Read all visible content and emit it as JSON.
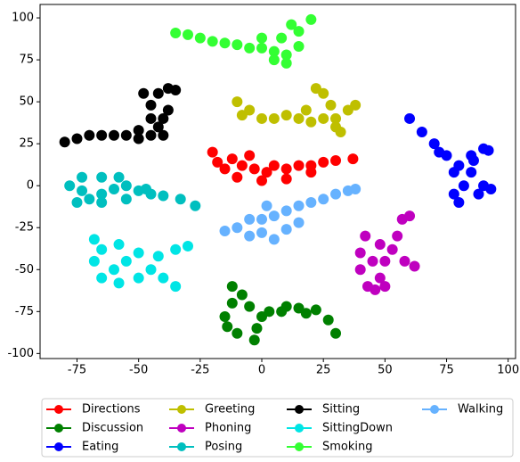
{
  "chart_data": {
    "type": "scatter",
    "xlim": [
      -90,
      103
    ],
    "ylim": [
      -103,
      108
    ],
    "xticks": [
      -75,
      -50,
      -25,
      0,
      25,
      50,
      75,
      100
    ],
    "yticks": [
      -100,
      -75,
      -50,
      -25,
      0,
      25,
      50,
      75,
      100
    ],
    "grid": false,
    "legend": "below",
    "series": [
      {
        "name": "Directions",
        "color": "#ff0000",
        "x": [
          -20,
          -18,
          -12,
          -8,
          -3,
          2,
          5,
          10,
          15,
          20,
          25,
          30,
          37,
          -10,
          0,
          10,
          -15,
          -5,
          20
        ],
        "y": [
          20,
          14,
          16,
          12,
          10,
          8,
          12,
          10,
          12,
          12,
          14,
          15,
          16,
          5,
          3,
          4,
          10,
          18,
          8
        ]
      },
      {
        "name": "Discussion",
        "color": "#008000",
        "x": [
          -12,
          -8,
          -15,
          -5,
          -2,
          3,
          8,
          15,
          22,
          27,
          30,
          -10,
          -3,
          -12,
          0,
          10,
          18,
          -14
        ],
        "y": [
          -60,
          -65,
          -78,
          -72,
          -85,
          -75,
          -75,
          -73,
          -74,
          -80,
          -88,
          -88,
          -92,
          -70,
          -78,
          -72,
          -76,
          -84
        ]
      },
      {
        "name": "Eating",
        "color": "#0000ff",
        "x": [
          60,
          65,
          70,
          75,
          80,
          85,
          90,
          92,
          85,
          90,
          93,
          82,
          78,
          80,
          88,
          78,
          72,
          86
        ],
        "y": [
          40,
          32,
          25,
          18,
          12,
          18,
          22,
          21,
          8,
          0,
          -2,
          0,
          -5,
          -10,
          -5,
          8,
          20,
          15
        ]
      },
      {
        "name": "Greeting",
        "color": "#bfbf00",
        "x": [
          -10,
          -5,
          -8,
          0,
          5,
          10,
          15,
          20,
          25,
          30,
          35,
          38,
          25,
          22,
          30,
          32,
          28,
          18
        ],
        "y": [
          50,
          45,
          42,
          40,
          40,
          42,
          40,
          38,
          40,
          40,
          45,
          48,
          55,
          58,
          35,
          32,
          48,
          45
        ]
      },
      {
        "name": "Phoning",
        "color": "#bf00bf",
        "x": [
          42,
          40,
          45,
          40,
          43,
          48,
          50,
          53,
          55,
          57,
          60,
          58,
          62,
          50,
          46,
          48
        ],
        "y": [
          -30,
          -40,
          -45,
          -50,
          -60,
          -55,
          -45,
          -38,
          -30,
          -20,
          -18,
          -45,
          -48,
          -60,
          -62,
          -35
        ]
      },
      {
        "name": "Posing",
        "color": "#00bfbf",
        "x": [
          -73,
          -78,
          -73,
          -70,
          -65,
          -60,
          -55,
          -50,
          -45,
          -40,
          -33,
          -27,
          -65,
          -58,
          -75,
          -65,
          -55,
          -47
        ],
        "y": [
          5,
          0,
          -3,
          -8,
          -5,
          -2,
          0,
          -3,
          -5,
          -6,
          -8,
          -12,
          5,
          5,
          -10,
          -10,
          -8,
          -2
        ]
      },
      {
        "name": "Sitting",
        "color": "#000000",
        "x": [
          -80,
          -75,
          -70,
          -65,
          -60,
          -55,
          -50,
          -45,
          -42,
          -40,
          -38,
          -45,
          -48,
          -42,
          -38,
          -35,
          -45,
          -40,
          -50
        ],
        "y": [
          26,
          28,
          30,
          30,
          30,
          30,
          28,
          30,
          35,
          40,
          45,
          48,
          55,
          55,
          58,
          57,
          40,
          30,
          33
        ]
      },
      {
        "name": "SittingDown",
        "color": "#00e5e5",
        "x": [
          -68,
          -65,
          -58,
          -50,
          -42,
          -35,
          -30,
          -55,
          -45,
          -40,
          -35,
          -60,
          -65,
          -58,
          -50,
          -68
        ],
        "y": [
          -32,
          -38,
          -35,
          -40,
          -42,
          -38,
          -36,
          -45,
          -50,
          -55,
          -60,
          -50,
          -55,
          -58,
          -55,
          -45
        ]
      },
      {
        "name": "Smoking",
        "color": "#33ff33",
        "x": [
          -35,
          -30,
          -25,
          -20,
          -15,
          -10,
          -5,
          0,
          5,
          10,
          8,
          15,
          20,
          12,
          10,
          5,
          0,
          15
        ],
        "y": [
          91,
          90,
          88,
          86,
          85,
          84,
          82,
          82,
          80,
          78,
          88,
          92,
          99,
          96,
          73,
          75,
          88,
          83
        ]
      },
      {
        "name": "Walking",
        "color": "#66b2ff",
        "x": [
          -15,
          -10,
          -5,
          0,
          5,
          10,
          15,
          20,
          25,
          30,
          35,
          38,
          0,
          5,
          10,
          2,
          15,
          -5
        ],
        "y": [
          -27,
          -25,
          -20,
          -20,
          -18,
          -15,
          -12,
          -10,
          -8,
          -5,
          -3,
          -2,
          -28,
          -32,
          -26,
          -12,
          -22,
          -30
        ]
      }
    ]
  }
}
